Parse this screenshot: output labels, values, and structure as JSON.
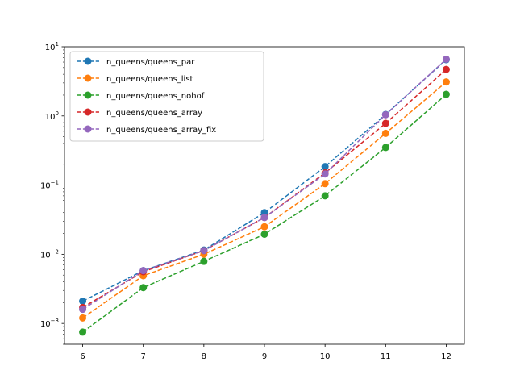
{
  "chart_data": {
    "type": "line",
    "title": "",
    "xlabel": "",
    "ylabel": "",
    "x": [
      6,
      7,
      8,
      9,
      10,
      11,
      12
    ],
    "xlim": [
      5.7,
      12.3
    ],
    "ylim": [
      0.0005,
      10
    ],
    "yscale": "log",
    "x_ticks": [
      "6",
      "7",
      "8",
      "9",
      "10",
      "11",
      "12"
    ],
    "y_ticks": [
      {
        "value": 0.001,
        "base": "10",
        "exp": "−3"
      },
      {
        "value": 0.01,
        "base": "10",
        "exp": "−2"
      },
      {
        "value": 0.1,
        "base": "10",
        "exp": "−1"
      },
      {
        "value": 1,
        "base": "10",
        "exp": "0"
      },
      {
        "value": 10,
        "base": "10",
        "exp": "1"
      }
    ],
    "grid": false,
    "legend_position": "top-left",
    "line_style": "dashed",
    "marker": "circle",
    "series": [
      {
        "name": "n_queens/queens_par",
        "color": "#1f77b4",
        "values": [
          0.0021,
          0.0058,
          0.0115,
          0.04,
          0.185,
          1.05,
          6.5
        ]
      },
      {
        "name": "n_queens/queens_list",
        "color": "#ff7f0e",
        "values": [
          0.0012,
          0.0049,
          0.01,
          0.025,
          0.105,
          0.56,
          3.1
        ]
      },
      {
        "name": "n_queens/queens_nohof",
        "color": "#2ca02c",
        "values": [
          0.00075,
          0.0033,
          0.0079,
          0.0195,
          0.07,
          0.35,
          2.05
        ]
      },
      {
        "name": "n_queens/queens_array",
        "color": "#d62728",
        "values": [
          0.0017,
          0.0056,
          0.0113,
          0.034,
          0.15,
          0.78,
          4.7
        ]
      },
      {
        "name": "n_queens/queens_array_fix",
        "color": "#9467bd",
        "values": [
          0.0016,
          0.0058,
          0.0113,
          0.034,
          0.145,
          1.04,
          6.6
        ]
      }
    ]
  }
}
